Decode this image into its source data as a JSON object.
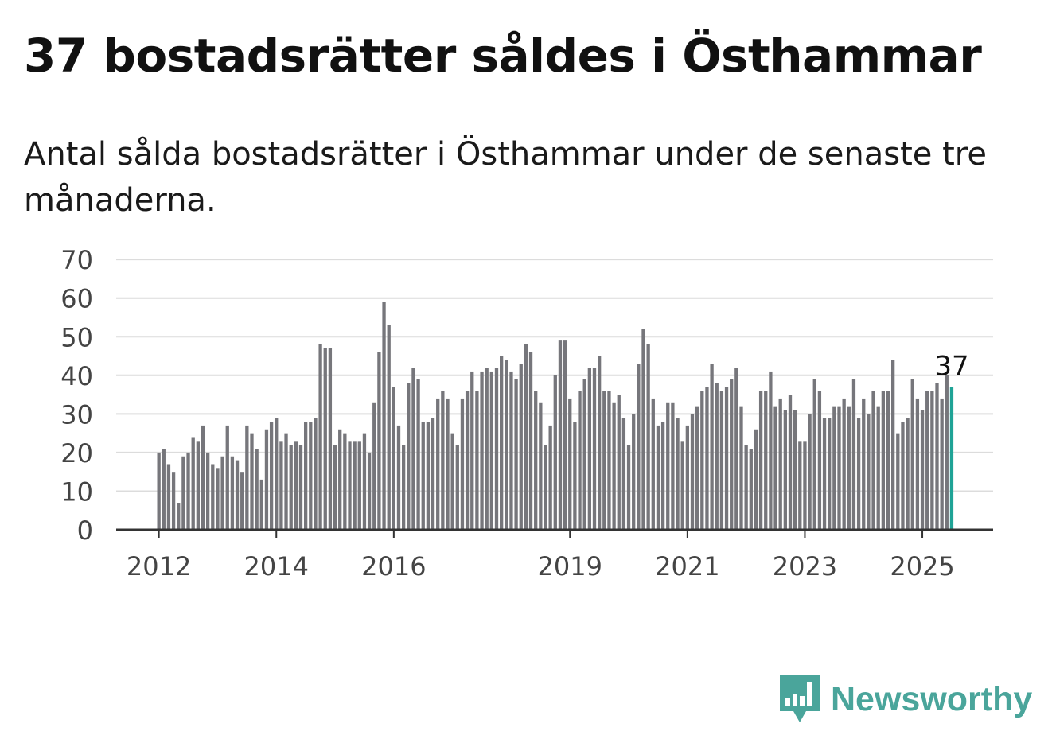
{
  "title": "37 bostadsrätter såldes i Östhammar",
  "subtitle": "Antal sålda bostadsrätter i Östhammar under de senaste tre månaderna.",
  "brand": "Newsworthy",
  "colors": {
    "bar": "#76767b",
    "highlight": "#1fa396",
    "grid": "#dcdcdc",
    "axis": "#333333",
    "brand": "#4aa59b"
  },
  "chart_data": {
    "type": "bar",
    "title": "",
    "xlabel": "",
    "ylabel": "",
    "ylim": [
      0,
      70
    ],
    "yticks": [
      0,
      10,
      20,
      30,
      40,
      50,
      60,
      70
    ],
    "xticks": [
      "2012",
      "2014",
      "2016",
      "2019",
      "2021",
      "2023",
      "2025"
    ],
    "grid": true,
    "start_year": 2012,
    "highlight_label": "37",
    "series": [
      {
        "values": [
          20,
          21,
          17,
          15,
          7,
          19,
          20,
          24,
          23,
          27,
          20,
          17,
          16,
          19,
          27,
          19,
          18,
          15,
          27,
          25,
          21,
          13,
          26,
          28,
          29,
          23,
          25,
          22,
          23,
          22,
          28,
          28,
          29,
          48,
          47,
          47,
          22,
          26,
          25,
          23,
          23,
          23,
          25,
          20,
          33,
          46,
          59,
          53,
          37,
          27,
          22,
          38,
          42,
          39,
          28,
          28,
          29,
          34,
          36,
          34,
          25,
          22,
          34,
          36,
          41,
          36,
          41,
          42,
          41,
          42,
          45,
          44,
          41,
          39,
          43,
          48,
          46,
          36,
          33,
          22,
          27,
          40,
          49,
          49,
          34,
          28,
          36,
          39,
          42,
          42,
          45,
          36,
          36,
          33,
          35,
          29,
          22,
          30,
          43,
          52,
          48,
          34,
          27,
          28,
          33,
          33,
          29,
          23,
          27,
          30,
          32,
          36,
          37,
          43,
          38,
          36,
          37,
          39,
          42,
          32,
          22,
          21,
          26,
          36,
          36,
          41,
          32,
          34,
          31,
          35,
          31,
          23,
          23,
          30,
          39,
          36,
          29,
          29,
          32,
          32,
          34,
          32,
          39,
          29,
          34,
          30,
          36,
          32,
          36,
          36,
          44,
          25,
          28,
          29,
          39,
          34,
          31,
          36,
          36,
          38,
          34,
          40,
          37
        ]
      }
    ]
  }
}
